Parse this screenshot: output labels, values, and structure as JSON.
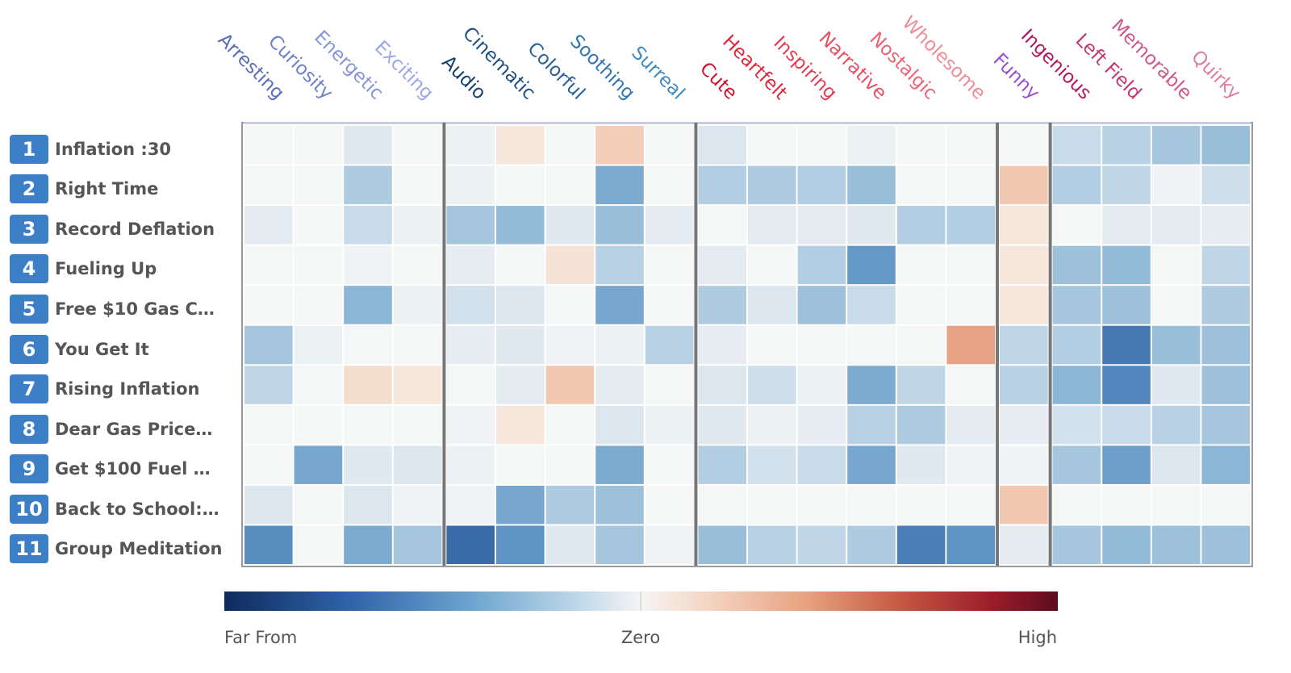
{
  "chart_data": {
    "type": "heatmap",
    "columns": [
      {
        "label": "Arresting",
        "color": "#5a6eb8"
      },
      {
        "label": "Curiosity",
        "color": "#6f82c8"
      },
      {
        "label": "Energetic",
        "color": "#8796d8"
      },
      {
        "label": "Exciting",
        "color": "#9aa8e8"
      },
      {
        "label": "Audio",
        "color": "#16426b"
      },
      {
        "label": "Cinematic",
        "color": "#1f527f"
      },
      {
        "label": "Colorful",
        "color": "#2a6296"
      },
      {
        "label": "Soothing",
        "color": "#3575ac"
      },
      {
        "label": "Surreal",
        "color": "#428ac2"
      },
      {
        "label": "Cute",
        "color": "#d0122e"
      },
      {
        "label": "Heartfelt",
        "color": "#dc2a40"
      },
      {
        "label": "Inspiring",
        "color": "#e23e52"
      },
      {
        "label": "Narrative",
        "color": "#e65064"
      },
      {
        "label": "Nostalgic",
        "color": "#ea6577"
      },
      {
        "label": "Wholesome",
        "color": "#ee8c98"
      },
      {
        "label": "Funny",
        "color": "#9a4fd0"
      },
      {
        "label": "Ingenious",
        "color": "#b0195e"
      },
      {
        "label": "Left Field",
        "color": "#c03a74"
      },
      {
        "label": "Memorable",
        "color": "#cc5a8a"
      },
      {
        "label": "Quirky",
        "color": "#dc7ea4"
      }
    ],
    "column_groups": [
      4,
      5,
      6,
      1,
      4
    ],
    "rows": [
      {
        "rank": "1",
        "label": "Inflation :30"
      },
      {
        "rank": "2",
        "label": "Right Time"
      },
      {
        "rank": "3",
        "label": "Record Deflation"
      },
      {
        "rank": "4",
        "label": "Fueling Up"
      },
      {
        "rank": "5",
        "label": "Free $10 Gas C…"
      },
      {
        "rank": "6",
        "label": "You Get It"
      },
      {
        "rank": "7",
        "label": "Rising Inflation"
      },
      {
        "rank": "8",
        "label": "Dear Gas Price…"
      },
      {
        "rank": "9",
        "label": "Get $100 Fuel …"
      },
      {
        "rank": "10",
        "label": "Back to School:…"
      },
      {
        "rank": "11",
        "label": "Group Meditation"
      }
    ],
    "values": [
      [
        0,
        0,
        -0.12,
        0,
        -0.05,
        0.08,
        0,
        0.18,
        0,
        -0.15,
        0,
        0,
        -0.05,
        0,
        0,
        0,
        -0.22,
        -0.28,
        -0.35,
        -0.4
      ],
      [
        0,
        0,
        -0.32,
        0,
        -0.05,
        0,
        0,
        -0.5,
        0,
        -0.3,
        -0.32,
        -0.3,
        -0.4,
        0,
        0,
        0.2,
        -0.3,
        -0.25,
        -0.03,
        -0.2
      ],
      [
        -0.1,
        0,
        -0.22,
        -0.05,
        -0.35,
        -0.42,
        -0.12,
        -0.4,
        -0.1,
        0,
        -0.1,
        -0.1,
        -0.12,
        -0.3,
        -0.3,
        0.08,
        0,
        -0.1,
        -0.1,
        -0.08
      ],
      [
        0,
        0,
        -0.03,
        0,
        -0.08,
        0,
        0.1,
        -0.28,
        0,
        -0.1,
        0,
        -0.3,
        -0.58,
        0,
        0,
        0.08,
        -0.38,
        -0.42,
        0,
        -0.25
      ],
      [
        0,
        0,
        -0.45,
        -0.05,
        -0.18,
        -0.15,
        0,
        -0.52,
        0,
        -0.32,
        -0.15,
        -0.38,
        -0.22,
        0,
        0,
        0.08,
        -0.35,
        -0.38,
        0,
        -0.32
      ],
      [
        -0.35,
        -0.05,
        0,
        0,
        -0.08,
        -0.12,
        -0.03,
        -0.05,
        -0.28,
        -0.08,
        0,
        0,
        0,
        0,
        0.32,
        -0.25,
        -0.3,
        -0.7,
        -0.4,
        -0.38
      ],
      [
        -0.25,
        0,
        0.12,
        0.08,
        0,
        -0.1,
        0.2,
        -0.1,
        0,
        -0.15,
        -0.2,
        -0.05,
        -0.5,
        -0.25,
        0,
        -0.28,
        -0.45,
        -0.65,
        -0.12,
        -0.38
      ],
      [
        0,
        0,
        0,
        0,
        -0.03,
        0.08,
        0,
        -0.15,
        -0.05,
        -0.12,
        -0.05,
        -0.08,
        -0.28,
        -0.32,
        -0.1,
        -0.08,
        -0.18,
        -0.22,
        -0.28,
        -0.35
      ],
      [
        0,
        -0.52,
        -0.12,
        -0.15,
        -0.05,
        0,
        0,
        -0.5,
        0,
        -0.3,
        -0.18,
        -0.22,
        -0.52,
        -0.12,
        -0.03,
        -0.03,
        -0.35,
        -0.55,
        -0.15,
        -0.45
      ],
      [
        -0.15,
        0,
        -0.15,
        -0.03,
        -0.03,
        -0.52,
        -0.32,
        -0.38,
        0,
        0,
        0,
        0,
        0,
        0,
        0,
        0.2,
        0,
        0,
        0,
        0
      ],
      [
        -0.62,
        0,
        -0.5,
        -0.35,
        -0.75,
        -0.6,
        -0.12,
        -0.35,
        -0.03,
        -0.4,
        -0.28,
        -0.25,
        -0.32,
        -0.68,
        -0.6,
        -0.1,
        -0.35,
        -0.42,
        -0.38,
        -0.38
      ]
    ],
    "color_scale": {
      "min": -1,
      "mid": 0,
      "max": 1,
      "scheme": "RdBu",
      "low_color": "#0f2b5e",
      "mid_color": "#f5f6f6",
      "high_color": "#5e0b1f"
    },
    "legend": {
      "low_label": "Far From",
      "mid_label": "Zero",
      "high_label": "High",
      "placement": "bottom"
    },
    "row_badge_color": "#3d7fc6"
  }
}
